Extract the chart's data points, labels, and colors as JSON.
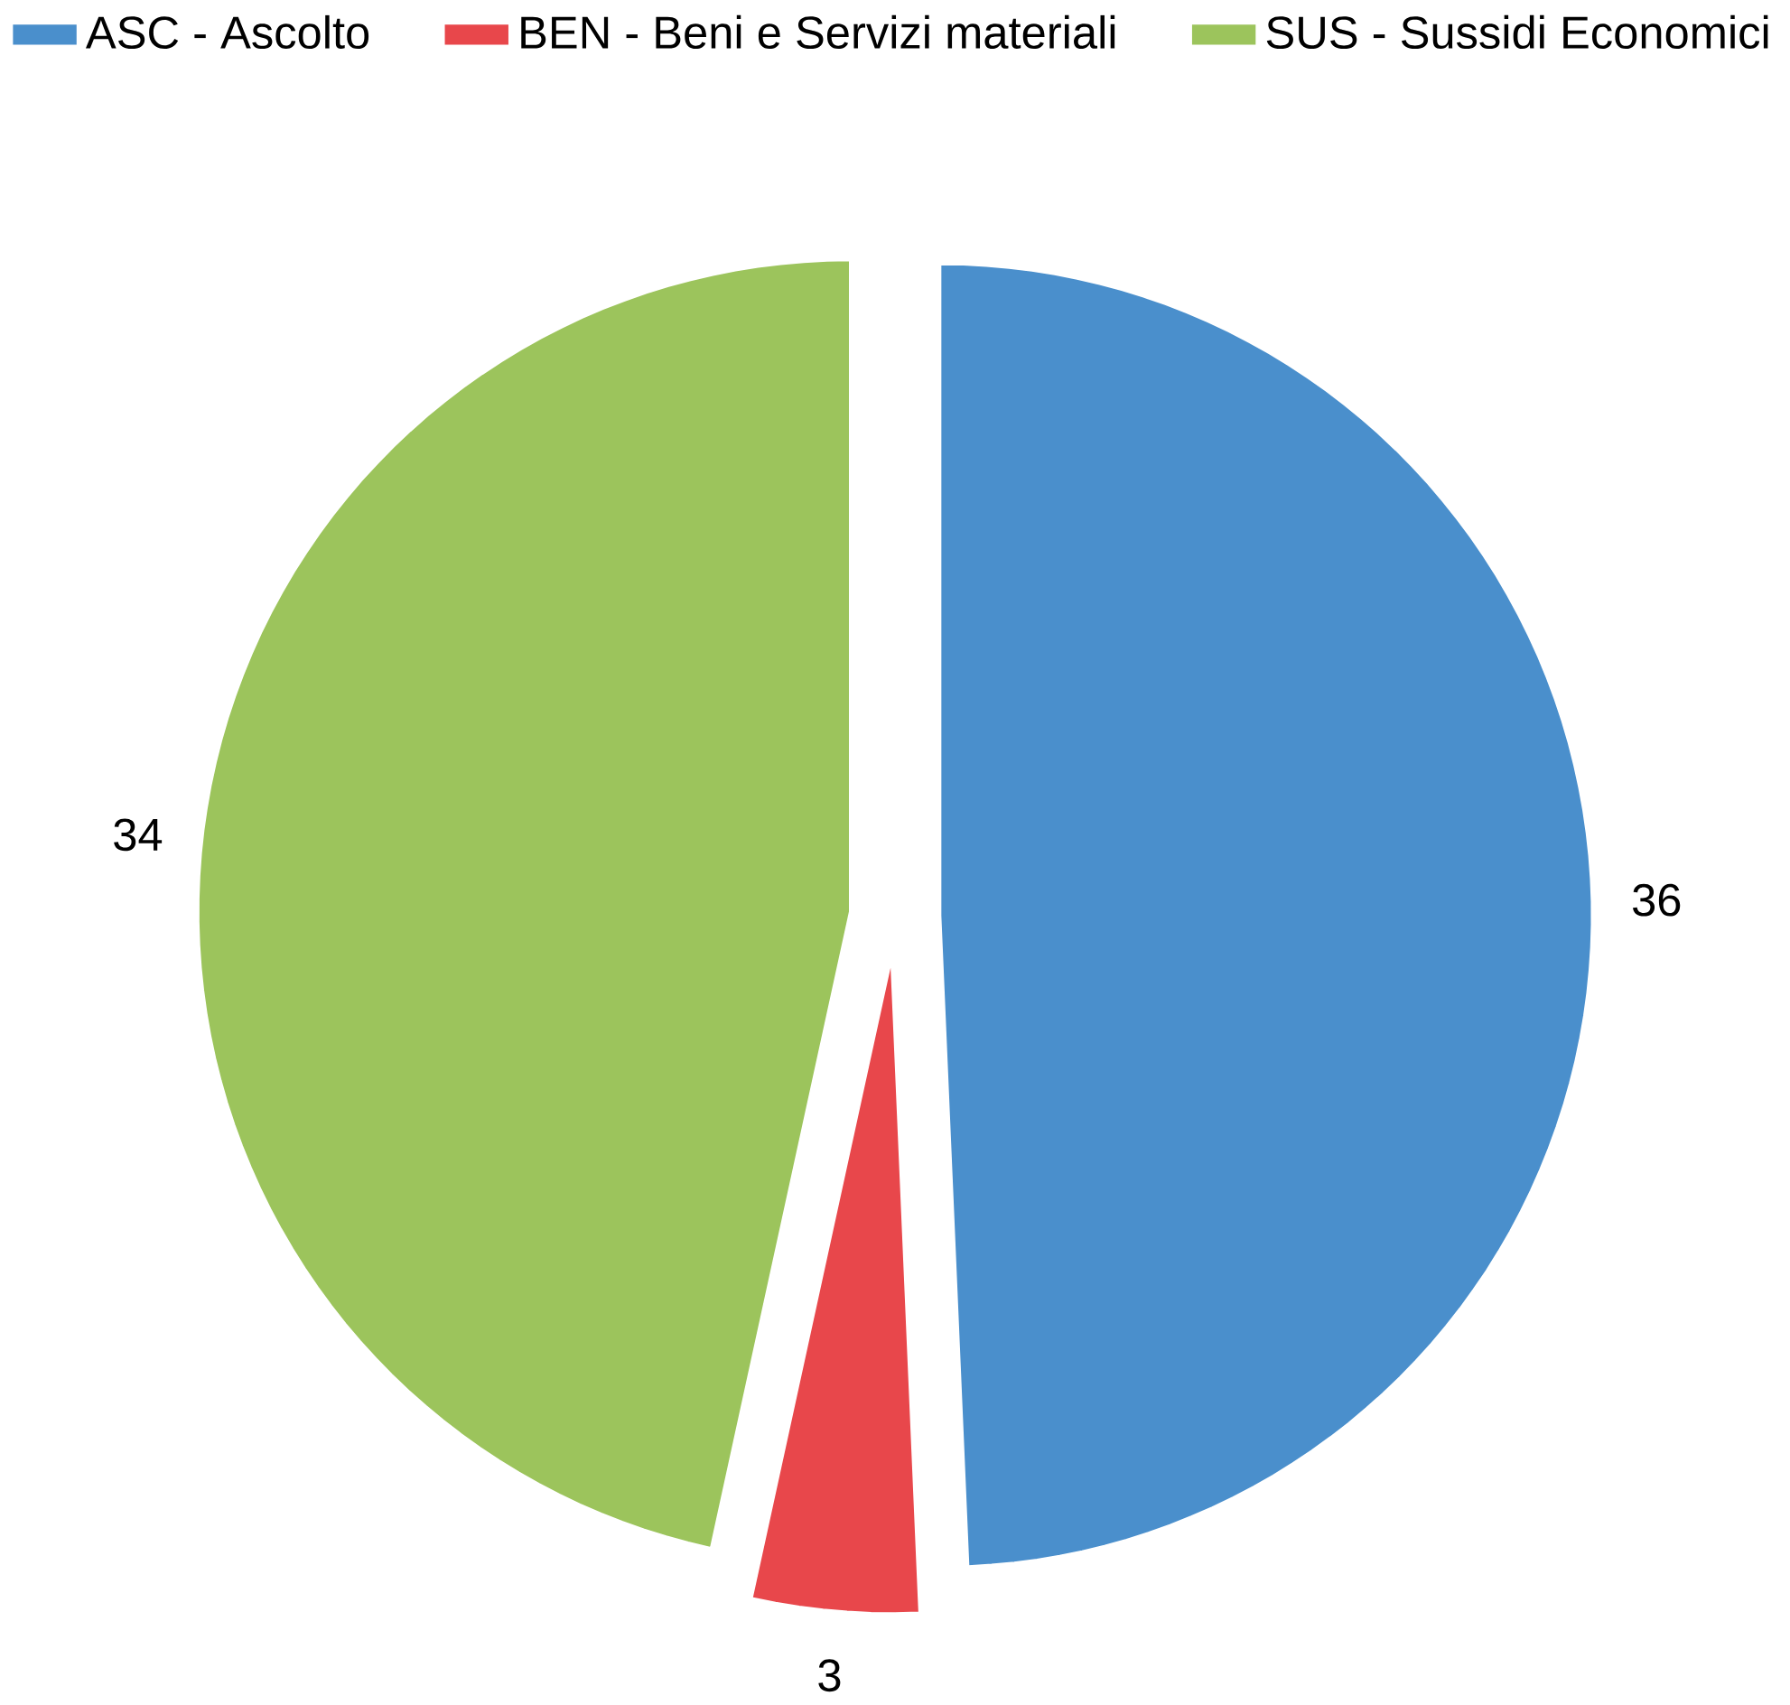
{
  "chart_data": {
    "type": "pie",
    "categories": [
      "ASC - Ascolto",
      "BEN - Beni e Servizi materiali",
      "SUS - Sussidi Economici"
    ],
    "values": [
      36,
      3,
      34
    ],
    "colors": [
      "#4a8fcc",
      "#e8474b",
      "#9cc45c"
    ],
    "data_labels": true,
    "legend": "top"
  }
}
